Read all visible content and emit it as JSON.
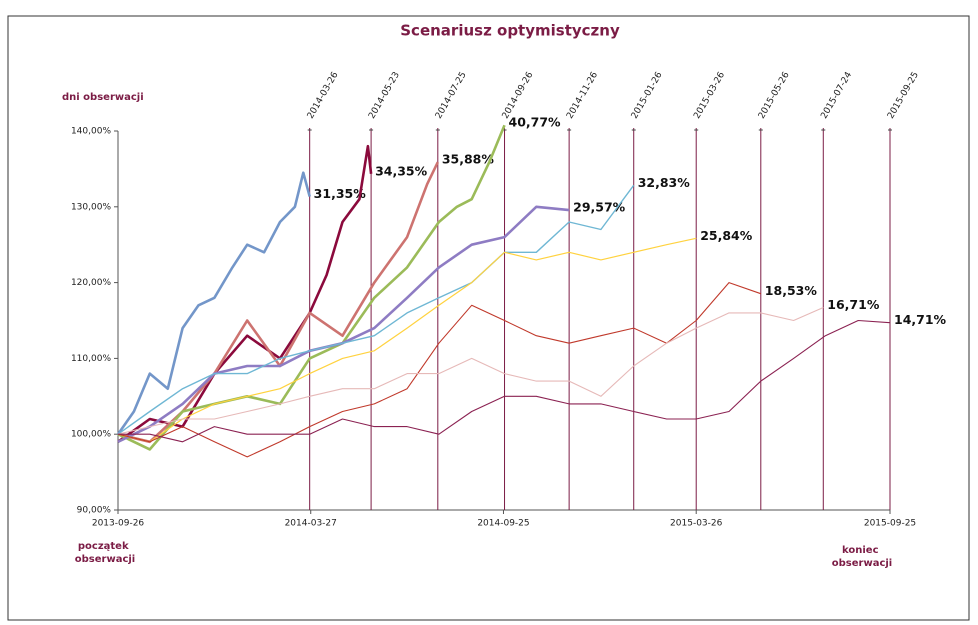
{
  "chart_data": {
    "type": "line",
    "title": "Scenariusz optymistyczny",
    "marker_title": "dni obserwacji",
    "start_label": [
      "początek",
      "obserwacji"
    ],
    "end_label": [
      "koniec",
      "obserwacji"
    ],
    "xlim": [
      "2013-09-26",
      "2015-09-25"
    ],
    "xticks": [
      "2013-09-26",
      "2014-03-27",
      "2014-09-25",
      "2015-03-26",
      "2015-09-25"
    ],
    "ylim": [
      90,
      140
    ],
    "yticks": [
      {
        "value": 90,
        "label": "90,00%"
      },
      {
        "value": 100,
        "label": "100,00%"
      },
      {
        "value": 110,
        "label": "110,00%"
      },
      {
        "value": 120,
        "label": "120,00%"
      },
      {
        "value": 130,
        "label": "130,00%"
      },
      {
        "value": 140,
        "label": "140,00%"
      }
    ],
    "observation_days": [
      "2014-03-26",
      "2014-05-23",
      "2014-07-25",
      "2014-09-26",
      "2014-11-26",
      "2015-01-26",
      "2015-03-26",
      "2015-05-26",
      "2015-07-24",
      "2015-09-25"
    ],
    "series": [
      {
        "color": "#7396c9",
        "line_width": 2.6,
        "end_label": {
          "value": 31.35,
          "label": "31,35%"
        },
        "x": [
          "2013-09-26",
          "2013-10-11",
          "2013-10-26",
          "2013-11-12",
          "2013-11-26",
          "2013-12-11",
          "2013-12-26",
          "2014-01-12",
          "2014-01-26",
          "2014-02-11",
          "2014-02-26",
          "2014-03-12",
          "2014-03-20",
          "2014-03-26"
        ],
        "values": [
          100,
          103,
          108,
          106,
          114,
          117,
          118,
          122,
          125,
          124,
          128,
          130,
          134.5,
          131.35
        ]
      },
      {
        "color": "#8b0a3c",
        "line_width": 2.6,
        "end_label": {
          "value": 34.35,
          "label": "34,35%"
        },
        "x": [
          "2013-09-26",
          "2013-10-26",
          "2013-11-26",
          "2013-12-26",
          "2014-01-26",
          "2014-02-26",
          "2014-03-26",
          "2014-04-11",
          "2014-04-26",
          "2014-05-12",
          "2014-05-20",
          "2014-05-23"
        ],
        "values": [
          99,
          102,
          101,
          108,
          113,
          110,
          116,
          121,
          128,
          131,
          138,
          134.35
        ]
      },
      {
        "color": "#cd7370",
        "line_width": 2.6,
        "end_label": {
          "value": 35.88,
          "label": "35,88%"
        },
        "x": [
          "2013-09-26",
          "2013-10-26",
          "2013-11-26",
          "2013-12-26",
          "2014-01-26",
          "2014-02-26",
          "2014-03-26",
          "2014-04-26",
          "2014-05-26",
          "2014-06-26",
          "2014-07-15",
          "2014-07-25"
        ],
        "values": [
          100,
          99,
          103,
          108,
          115,
          109,
          116,
          113,
          120,
          126,
          133,
          135.88
        ]
      },
      {
        "color": "#9bbb59",
        "line_width": 2.6,
        "end_label": {
          "value": 40.77,
          "label": "40,77%"
        },
        "x": [
          "2013-09-26",
          "2013-10-26",
          "2013-11-26",
          "2013-12-26",
          "2014-01-26",
          "2014-02-26",
          "2014-03-26",
          "2014-04-26",
          "2014-05-26",
          "2014-06-26",
          "2014-07-26",
          "2014-08-12",
          "2014-08-26",
          "2014-09-12",
          "2014-09-26"
        ],
        "values": [
          100,
          98,
          103,
          104,
          105,
          104,
          110,
          112,
          118,
          122,
          128,
          130,
          131,
          136,
          140.77
        ]
      },
      {
        "color": "#8e7cc3",
        "line_width": 2.6,
        "end_label": {
          "value": 29.57,
          "label": "29,57%"
        },
        "x": [
          "2013-09-26",
          "2013-10-26",
          "2013-11-26",
          "2013-12-26",
          "2014-01-26",
          "2014-02-26",
          "2014-03-26",
          "2014-04-26",
          "2014-05-26",
          "2014-06-26",
          "2014-07-26",
          "2014-08-26",
          "2014-09-26",
          "2014-10-26",
          "2014-11-26"
        ],
        "values": [
          99,
          101,
          104,
          108,
          109,
          109,
          111,
          112,
          114,
          118,
          122,
          125,
          126,
          130,
          129.57
        ]
      },
      {
        "color": "#6fb7d4",
        "line_width": 1.4,
        "end_label": {
          "value": 32.83,
          "label": "32,83%"
        },
        "x": [
          "2013-09-26",
          "2013-10-26",
          "2013-11-26",
          "2013-12-26",
          "2014-01-26",
          "2014-02-26",
          "2014-03-26",
          "2014-04-26",
          "2014-05-26",
          "2014-06-26",
          "2014-07-26",
          "2014-08-26",
          "2014-09-26",
          "2014-10-26",
          "2014-11-26",
          "2014-12-26",
          "2015-01-26"
        ],
        "values": [
          100,
          103,
          106,
          108,
          108,
          110,
          111,
          112,
          113,
          116,
          118,
          120,
          124,
          124,
          128,
          127,
          132.83
        ]
      },
      {
        "color": "#ffd23f",
        "line_width": 1.2,
        "end_label": {
          "value": 25.84,
          "label": "25,84%"
        },
        "x": [
          "2013-09-26",
          "2013-10-26",
          "2013-11-26",
          "2013-12-26",
          "2014-01-26",
          "2014-02-26",
          "2014-03-26",
          "2014-04-26",
          "2014-05-26",
          "2014-06-26",
          "2014-07-26",
          "2014-08-26",
          "2014-09-26",
          "2014-10-26",
          "2014-11-26",
          "2014-12-26",
          "2015-01-26",
          "2015-02-26",
          "2015-03-26"
        ],
        "values": [
          100,
          99,
          102,
          104,
          105,
          106,
          108,
          110,
          111,
          114,
          117,
          120,
          124,
          123,
          124,
          123,
          124,
          125,
          125.84
        ]
      },
      {
        "color": "#c0392b",
        "line_width": 1.1,
        "end_label": {
          "value": 18.53,
          "label": "18,53%"
        },
        "x": [
          "2013-09-26",
          "2013-10-26",
          "2013-11-26",
          "2013-12-26",
          "2014-01-26",
          "2014-02-26",
          "2014-03-26",
          "2014-04-26",
          "2014-05-26",
          "2014-06-26",
          "2014-07-26",
          "2014-08-26",
          "2014-09-26",
          "2014-10-26",
          "2014-11-26",
          "2014-12-26",
          "2015-01-26",
          "2015-02-26",
          "2015-03-26",
          "2015-04-26",
          "2015-05-26"
        ],
        "values": [
          100,
          99,
          101,
          99,
          97,
          99,
          101,
          103,
          104,
          106,
          112,
          117,
          115,
          113,
          112,
          113,
          114,
          112,
          115,
          120,
          118.53
        ]
      },
      {
        "color": "#e6b9b8",
        "line_width": 1.1,
        "end_label": {
          "value": 16.71,
          "label": "16,71%"
        },
        "x": [
          "2013-09-26",
          "2013-10-26",
          "2013-11-26",
          "2013-12-26",
          "2014-01-26",
          "2014-02-26",
          "2014-03-26",
          "2014-04-26",
          "2014-05-26",
          "2014-06-26",
          "2014-07-26",
          "2014-08-26",
          "2014-09-26",
          "2014-10-26",
          "2014-11-26",
          "2014-12-26",
          "2015-01-26",
          "2015-02-26",
          "2015-03-26",
          "2015-04-26",
          "2015-05-26",
          "2015-06-26",
          "2015-07-24"
        ],
        "values": [
          100,
          101,
          102,
          102,
          103,
          104,
          105,
          106,
          106,
          108,
          108,
          110,
          108,
          107,
          107,
          105,
          109,
          112,
          114,
          116,
          116,
          115,
          116.71
        ]
      },
      {
        "color": "#8b2252",
        "line_width": 1.1,
        "end_label": {
          "value": 14.71,
          "label": "14,71%"
        },
        "x": [
          "2013-09-26",
          "2013-10-26",
          "2013-11-26",
          "2013-12-26",
          "2014-01-26",
          "2014-02-26",
          "2014-03-26",
          "2014-04-26",
          "2014-05-26",
          "2014-06-26",
          "2014-07-26",
          "2014-08-26",
          "2014-09-26",
          "2014-10-26",
          "2014-11-26",
          "2014-12-26",
          "2015-01-26",
          "2015-02-26",
          "2015-03-26",
          "2015-04-26",
          "2015-05-26",
          "2015-06-26",
          "2015-07-26",
          "2015-08-26",
          "2015-09-25"
        ],
        "values": [
          100,
          100,
          99,
          101,
          100,
          100,
          100,
          102,
          101,
          101,
          100,
          103,
          105,
          105,
          104,
          104,
          103,
          102,
          102,
          103,
          107,
          110,
          113,
          115,
          114.71
        ]
      }
    ]
  }
}
